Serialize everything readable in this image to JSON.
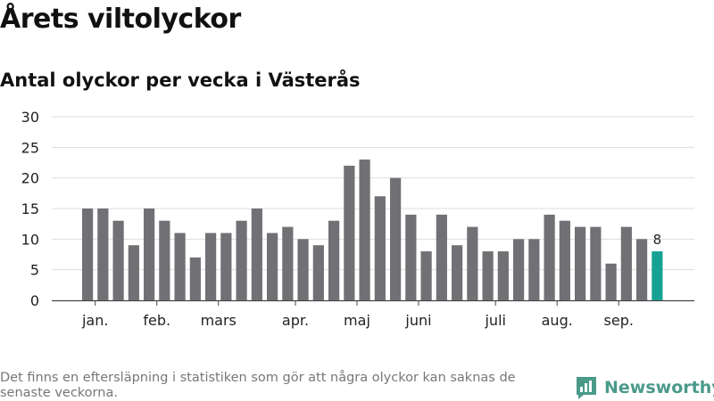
{
  "title": "Årets viltolyckor",
  "subtitle": "Antal olyckor per vecka i Västerås",
  "footnote": "Det finns en eftersläpning i statistiken som gör att några olyckor kan saknas de senaste veckorna.",
  "brand": {
    "name": "Newsworthy",
    "icon": "newsworthy-logo-icon",
    "color": "#4a9a8a"
  },
  "chart_data": {
    "type": "bar",
    "title": "Antal olyckor per vecka i Västerås",
    "xlabel": "",
    "ylabel": "",
    "ylim": [
      0,
      30
    ],
    "yticks": [
      0,
      5,
      10,
      15,
      20,
      25,
      30
    ],
    "grid": true,
    "values": [
      15,
      15,
      13,
      9,
      15,
      13,
      11,
      7,
      11,
      11,
      13,
      15,
      11,
      12,
      10,
      9,
      13,
      22,
      23,
      17,
      20,
      14,
      8,
      14,
      9,
      12,
      8,
      8,
      10,
      10,
      14,
      13,
      12,
      12,
      6,
      12,
      10,
      8
    ],
    "month_labels": [
      {
        "label": "jan.",
        "bar_index": 0.5
      },
      {
        "label": "feb.",
        "bar_index": 4.5
      },
      {
        "label": "mars",
        "bar_index": 8.5
      },
      {
        "label": "apr.",
        "bar_index": 13.5
      },
      {
        "label": "maj",
        "bar_index": 17.5
      },
      {
        "label": "juni",
        "bar_index": 21.5
      },
      {
        "label": "juli",
        "bar_index": 26.5
      },
      {
        "label": "aug.",
        "bar_index": 30.5
      },
      {
        "label": "sep.",
        "bar_index": 34.5
      }
    ],
    "highlight": {
      "index": 37,
      "label": "8"
    },
    "colors": {
      "bar": "#717075",
      "highlight": "#15a294",
      "grid": "#dddddd",
      "axis": "#444444"
    }
  }
}
